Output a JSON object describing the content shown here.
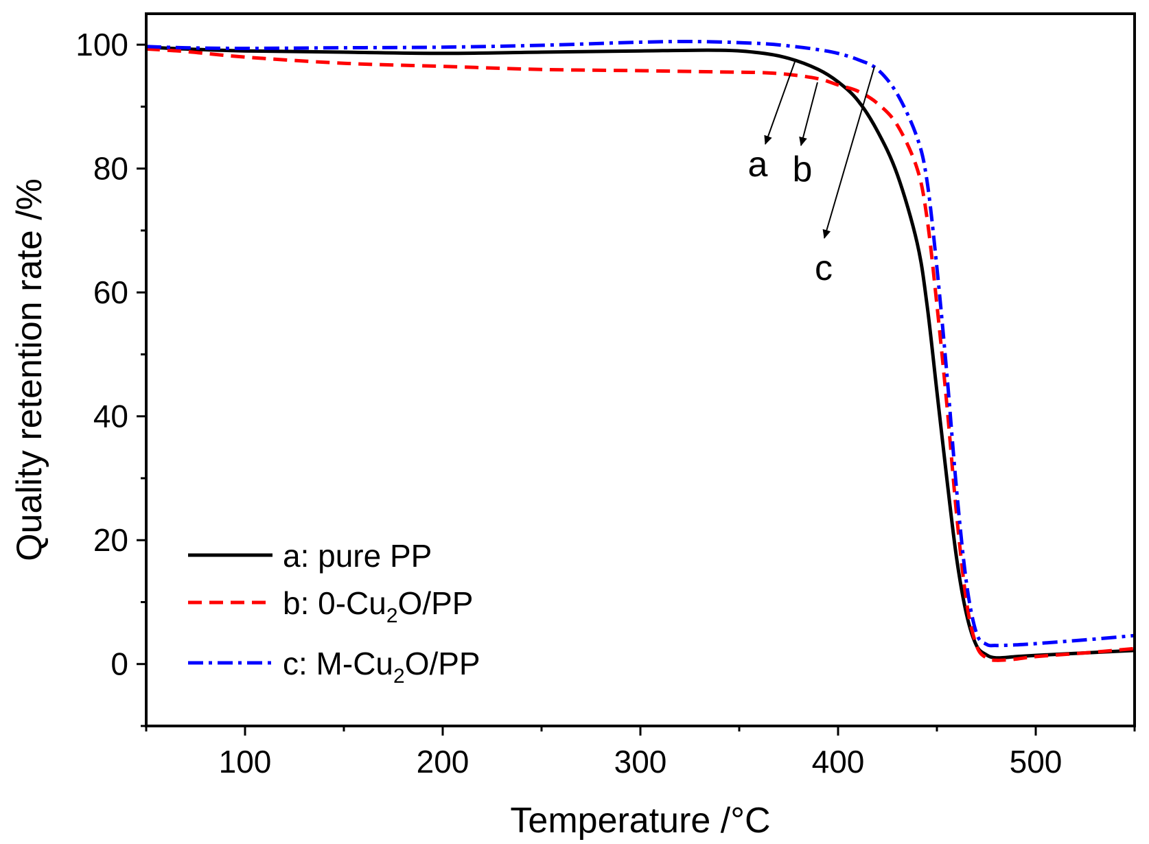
{
  "chart_data": {
    "type": "line",
    "xlabel": "Temperature /°C",
    "ylabel": "Quality retention rate /%",
    "xlim": [
      50,
      550
    ],
    "ylim": [
      -10,
      105
    ],
    "x_ticks": [
      100,
      200,
      300,
      400,
      500
    ],
    "x_tick_labels": [
      "100",
      "200",
      "300",
      "400",
      "500"
    ],
    "x_minor_ticks": [
      50,
      150,
      250,
      350,
      450,
      550
    ],
    "y_ticks": [
      0,
      20,
      40,
      60,
      80,
      100
    ],
    "y_tick_labels": [
      "0",
      "20",
      "40",
      "60",
      "80",
      "100"
    ],
    "y_minor_ticks": [
      -10,
      10,
      30,
      50,
      70,
      90
    ],
    "grid": false,
    "legend_position": "bottom-left",
    "series": [
      {
        "name": "a: pure PP",
        "color": "#000000",
        "style": "solid",
        "x": [
          50,
          70,
          100,
          150,
          200,
          250,
          300,
          340,
          360,
          375,
          390,
          400,
          410,
          420,
          430,
          440,
          445,
          450,
          455,
          460,
          465,
          470,
          475,
          480,
          490,
          500,
          525,
          550
        ],
        "y": [
          99.6,
          99.3,
          99.0,
          98.8,
          98.6,
          98.8,
          99.0,
          99.1,
          98.7,
          97.8,
          96.0,
          94.0,
          91.0,
          86.0,
          79.0,
          68.0,
          58.0,
          44.0,
          30.0,
          17.0,
          8.0,
          3.0,
          1.5,
          1.0,
          1.2,
          1.4,
          1.8,
          2.2
        ]
      },
      {
        "name": "b: 0-Cu",
        "name_sub": "2",
        "name_rest": "O/PP",
        "color": "#ff0000",
        "style": "dashed",
        "x": [
          50,
          70,
          100,
          150,
          200,
          250,
          300,
          340,
          360,
          375,
          390,
          400,
          410,
          420,
          430,
          440,
          445,
          450,
          455,
          460,
          465,
          470,
          475,
          480,
          490,
          500,
          525,
          550
        ],
        "y": [
          99.3,
          98.9,
          98.0,
          97.0,
          96.5,
          96.0,
          95.8,
          95.6,
          95.5,
          95.2,
          94.5,
          93.5,
          92.5,
          90.5,
          87.0,
          80.0,
          72.0,
          58.0,
          42.0,
          24.0,
          10.0,
          3.0,
          1.0,
          0.6,
          0.8,
          1.2,
          1.8,
          2.5
        ]
      },
      {
        "name": "c: M-Cu",
        "name_sub": "2",
        "name_rest": "O/PP",
        "color": "#0000ff",
        "style": "dashdot",
        "x": [
          50,
          70,
          100,
          150,
          200,
          250,
          300,
          330,
          360,
          375,
          390,
          400,
          410,
          420,
          430,
          440,
          445,
          450,
          455,
          460,
          465,
          470,
          475,
          480,
          490,
          500,
          525,
          550
        ],
        "y": [
          99.7,
          99.5,
          99.4,
          99.5,
          99.6,
          99.9,
          100.4,
          100.5,
          100.2,
          99.8,
          99.2,
          98.6,
          97.6,
          96.0,
          92.0,
          85.0,
          78.0,
          64.0,
          47.0,
          28.0,
          13.0,
          5.0,
          3.2,
          3.0,
          3.1,
          3.3,
          3.9,
          4.6
        ]
      }
    ],
    "annotations": [
      {
        "label": "a",
        "series": 0
      },
      {
        "label": "b",
        "series": 1
      },
      {
        "label": "c",
        "series": 2
      }
    ]
  }
}
